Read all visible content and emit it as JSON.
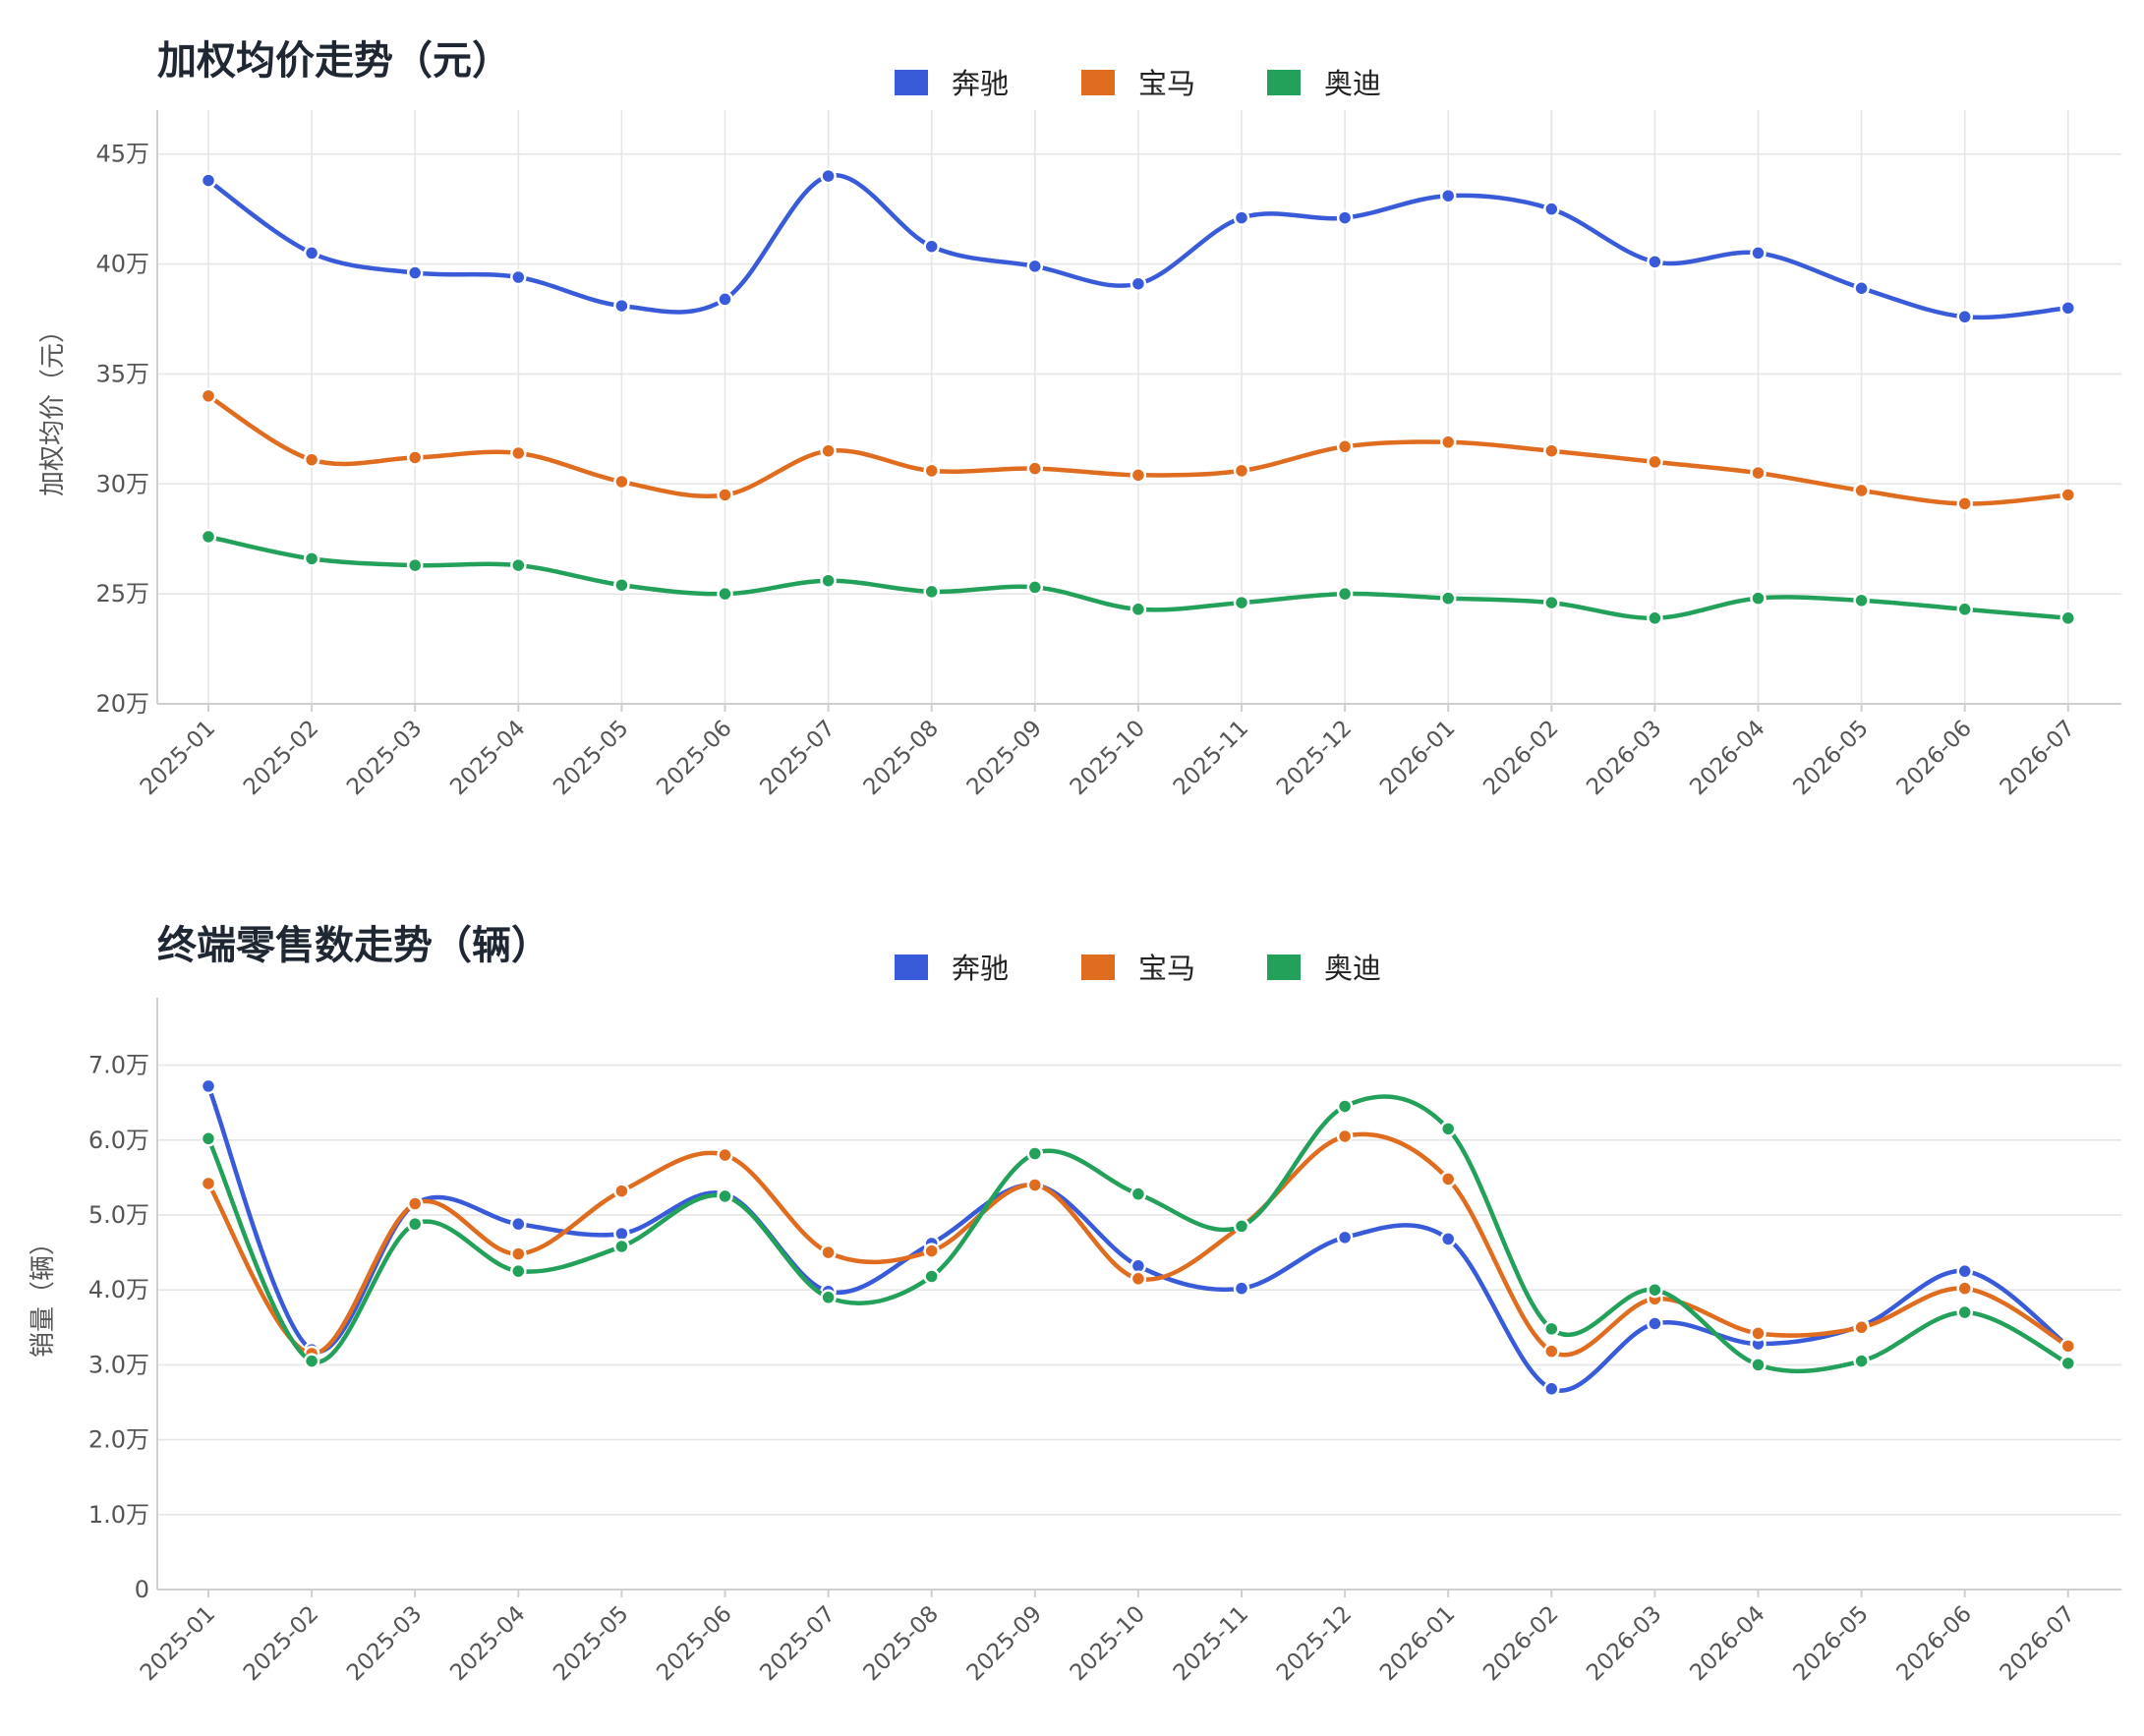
{
  "colors": {
    "benz": "#3a5bd9",
    "bmw": "#e06c1f",
    "audi": "#23a15a"
  },
  "chart_data": [
    {
      "type": "line",
      "title": "加权均价走势（元）",
      "ylabel": "加权均价（元）",
      "xlabel": "",
      "ylim": [
        20,
        47
      ],
      "y_ticks": [
        20,
        25,
        30,
        35,
        40,
        45
      ],
      "y_tick_labels": [
        "20万",
        "25万",
        "30万",
        "35万",
        "40万",
        "45万"
      ],
      "unit": "万",
      "legend_position": "top-center",
      "grid": true,
      "categories": [
        "2025-01",
        "2025-02",
        "2025-03",
        "2025-04",
        "2025-05",
        "2025-06",
        "2025-07",
        "2025-08",
        "2025-09",
        "2025-10",
        "2025-11",
        "2025-12",
        "2026-01",
        "2026-02",
        "2026-03",
        "2026-04",
        "2026-05",
        "2026-06",
        "2026-07"
      ],
      "series": [
        {
          "name": "奔驰",
          "color_key": "benz",
          "values": [
            43.8,
            40.5,
            39.6,
            39.4,
            38.1,
            38.4,
            44.0,
            40.8,
            39.9,
            39.1,
            42.1,
            42.1,
            43.1,
            42.5,
            40.1,
            40.5,
            38.9,
            37.6,
            38.0
          ]
        },
        {
          "name": "宝马",
          "color_key": "bmw",
          "values": [
            34.0,
            31.1,
            31.2,
            31.4,
            30.1,
            29.5,
            31.5,
            30.6,
            30.7,
            30.4,
            30.6,
            31.7,
            31.9,
            31.5,
            31.0,
            30.5,
            29.7,
            29.1,
            29.5
          ]
        },
        {
          "name": "奥迪",
          "color_key": "audi",
          "values": [
            27.6,
            26.6,
            26.3,
            26.3,
            25.4,
            25.0,
            25.6,
            25.1,
            25.3,
            24.3,
            24.6,
            25.0,
            24.8,
            24.6,
            23.9,
            24.8,
            24.7,
            24.3,
            23.9
          ]
        }
      ]
    },
    {
      "type": "line",
      "title": "终端零售数走势（辆）",
      "ylabel": "销量（辆）",
      "xlabel": "",
      "ylim": [
        0,
        7.9
      ],
      "y_ticks": [
        0,
        1,
        2,
        3,
        4,
        5,
        6,
        7
      ],
      "y_tick_labels": [
        "0",
        "1.0万",
        "2.0万",
        "3.0万",
        "4.0万",
        "5.0万",
        "6.0万",
        "7.0万"
      ],
      "unit": "万",
      "legend_position": "top-center",
      "grid": true,
      "categories": [
        "2025-01",
        "2025-02",
        "2025-03",
        "2025-04",
        "2025-05",
        "2025-06",
        "2025-07",
        "2025-08",
        "2025-09",
        "2025-10",
        "2025-11",
        "2025-12",
        "2026-01",
        "2026-02",
        "2026-03",
        "2026-04",
        "2026-05",
        "2026-06",
        "2026-07"
      ],
      "series": [
        {
          "name": "奔驰",
          "color_key": "benz",
          "values": [
            6.72,
            3.2,
            5.15,
            4.88,
            4.75,
            5.28,
            3.98,
            4.62,
            5.4,
            4.32,
            4.02,
            4.7,
            4.68,
            2.68,
            3.55,
            3.28,
            3.52,
            4.25,
            3.25
          ]
        },
        {
          "name": "宝马",
          "color_key": "bmw",
          "values": [
            5.42,
            3.15,
            5.15,
            4.48,
            5.32,
            5.8,
            4.5,
            4.52,
            5.4,
            4.15,
            4.85,
            6.05,
            5.48,
            3.18,
            3.88,
            3.42,
            3.5,
            4.02,
            3.25
          ]
        },
        {
          "name": "奥迪",
          "color_key": "audi",
          "values": [
            6.02,
            3.05,
            4.88,
            4.25,
            4.58,
            5.25,
            3.9,
            4.18,
            5.82,
            5.28,
            4.85,
            6.45,
            6.15,
            3.48,
            4.0,
            3.0,
            3.05,
            3.7,
            3.02
          ]
        }
      ]
    }
  ]
}
